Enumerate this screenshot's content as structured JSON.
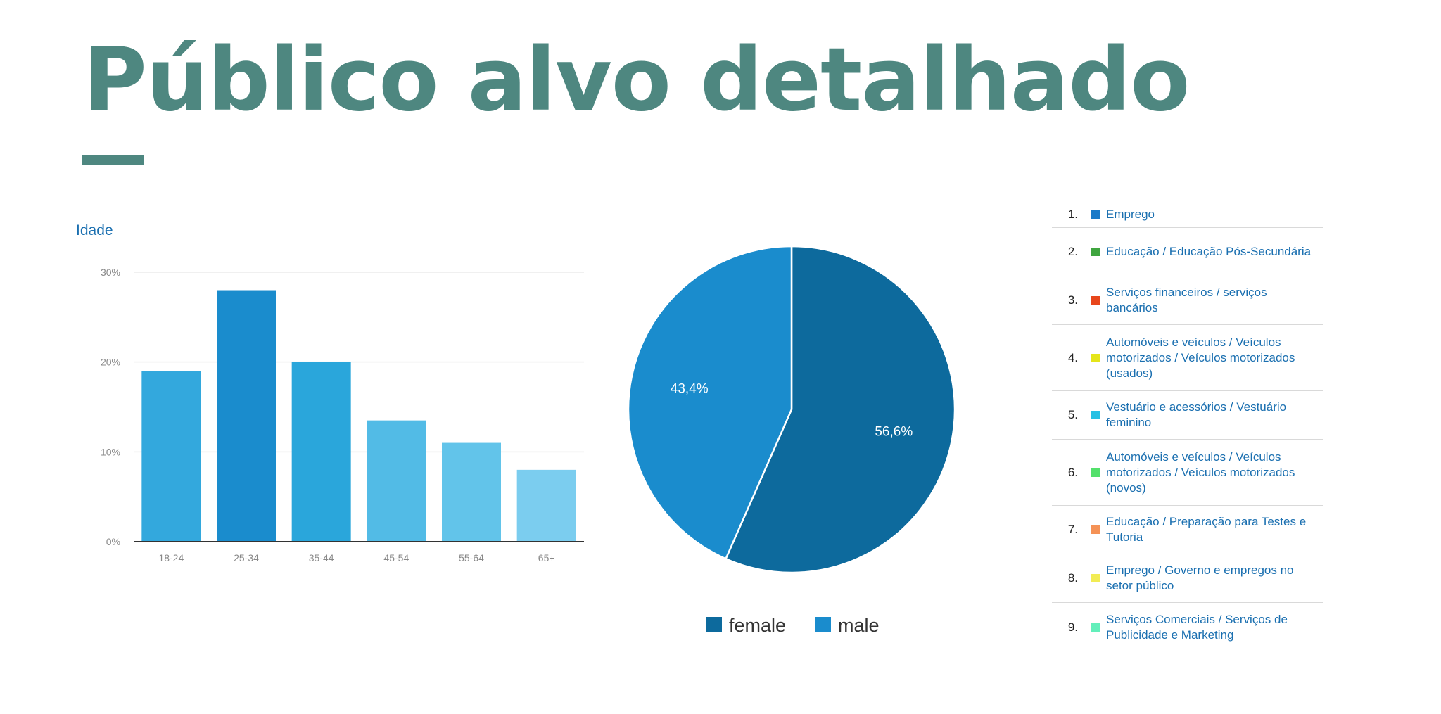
{
  "title": "Público alvo detalhado",
  "chart_data": [
    {
      "type": "bar",
      "title": "Idade",
      "categories": [
        "18-24",
        "25-34",
        "35-44",
        "45-54",
        "55-64",
        "65+"
      ],
      "values": [
        19,
        28,
        20,
        13.5,
        11,
        8
      ],
      "ylim": [
        0,
        30
      ],
      "yticks": [
        "0%",
        "10%",
        "20%",
        "30%"
      ],
      "grid": true,
      "colors": [
        "#33a8dd",
        "#1a8ccd",
        "#2aa6db",
        "#52bbe6",
        "#62c4ea",
        "#7bcdef"
      ]
    },
    {
      "type": "pie",
      "series": [
        {
          "name": "female",
          "value": 56.6,
          "label": "56,6%",
          "color": "#0d6a9d"
        },
        {
          "name": "male",
          "value": 43.4,
          "label": "43,4%",
          "color": "#1a8ccd"
        }
      ],
      "legend": "bottom"
    },
    {
      "type": "table",
      "rows": [
        {
          "num": "1.",
          "label": "Emprego",
          "color": "#1a7ac8"
        },
        {
          "num": "2.",
          "label": "Educação / Educação Pós-Secundária",
          "color": "#3fa53f"
        },
        {
          "num": "3.",
          "label": "Serviços financeiros / serviços bancários",
          "color": "#e8461c"
        },
        {
          "num": "4.",
          "label": "Automóveis e veículos / Veículos motorizados / Veículos motorizados (usados)",
          "color": "#e5e51a"
        },
        {
          "num": "5.",
          "label": "Vestuário e acessórios / Vestuário feminino",
          "color": "#27c0e4"
        },
        {
          "num": "6.",
          "label": "Automóveis e veículos / Veículos motorizados / Veículos motorizados (novos)",
          "color": "#53e06b"
        },
        {
          "num": "7.",
          "label": "Educação / Preparação para Testes e Tutoria",
          "color": "#f59256"
        },
        {
          "num": "8.",
          "label": "Emprego / Governo e empregos no setor público",
          "color": "#f2ec54"
        },
        {
          "num": "9.",
          "label": "Serviços Comerciais / Serviços de Publicidade e Marketing",
          "color": "#63efbb"
        }
      ]
    }
  ]
}
